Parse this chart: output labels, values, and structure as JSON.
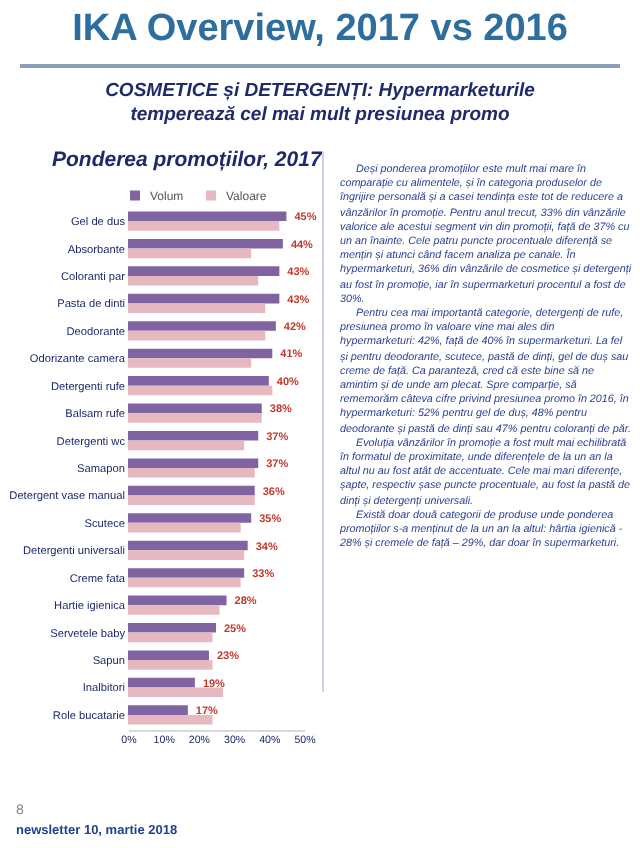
{
  "chart_data": {
    "type": "bar",
    "orientation": "horizontal",
    "title": "IKA Overview, 2017 vs 2016",
    "subtitle": "COSMETICE și DETERGENȚI: Hypermarketurile temperează cel mai mult presiunea promo",
    "categories": [
      "Gel de dus",
      "Absorbante",
      "Coloranti par",
      "Pasta de dinti",
      "Deodorante",
      "Odorizante camera",
      "Detergenti rufe",
      "Balsam rufe",
      "Detergenti wc",
      "Samapon",
      "Detergent vase manual",
      "Scutece",
      "Detergenti universali",
      "Creme fata",
      "Hartie igienica",
      "Servetele baby",
      "Sapun",
      "Inalbitori",
      "Role bucatarie"
    ],
    "series": [
      {
        "name": "Volum",
        "color": "#8064a2",
        "values": [
          45,
          44,
          43,
          43,
          42,
          41,
          40,
          38,
          37,
          37,
          36,
          35,
          34,
          33,
          28,
          25,
          23,
          19,
          17
        ],
        "value_labels": [
          "45%",
          "44%",
          "43%",
          "43%",
          "42%",
          "41%",
          "40%",
          "38%",
          "37%",
          "37%",
          "36%",
          "35%",
          "34%",
          "33%",
          "28%",
          "25%",
          "23%",
          "19%",
          "17%"
        ]
      },
      {
        "name": "Valoare",
        "color": "#e6b9c0",
        "values": [
          43,
          35,
          37,
          39,
          39,
          35,
          41,
          38,
          33,
          36,
          36,
          32,
          33,
          32,
          26,
          24,
          24,
          27,
          24
        ]
      }
    ],
    "xlim": [
      0,
      50
    ],
    "xticks": [
      {
        "value": 0,
        "label": "0%"
      },
      {
        "value": 10,
        "label": "10%"
      },
      {
        "value": 20,
        "label": "20%"
      },
      {
        "value": 30,
        "label": "30%"
      },
      {
        "value": 40,
        "label": "40%"
      },
      {
        "value": 50,
        "label": "50%"
      }
    ],
    "legend": "top left",
    "grid": false,
    "annotations": [
      "Ponderea promoțiilor, 2017",
      "Deși ponderea promoțiilor este mult mai mare în comparație cu alimentele, și în categoria produselor de îngrijire personală și a casei tendința este tot de reducere a vânzărilor în promoție. Pentru anul trecut, 33% din vânzările valorice ale acestui segment vin din promoții, față de 37% cu un an înainte. Cele patru puncte procentuale diferență se mențin și atunci când facem analiza pe canale. În hypermarketuri, 36% din vânzările de cosmetice și detergenți au fost în promoție, iar în supermarketuri procentul a fost de 30%.",
      "Pentru cea mai importantă categorie, detergenți de rufe, presiunea promo în valoare vine mai ales din hypermarketuri: 42%, față de 40% în supermarketuri. La fel și pentru deodorante, scutece, pastă de dinți, gel de duș sau creme de față. Ca paranteză, cred că este bine să ne amintim și de unde am plecat. Spre comparție, să rememorăm câteva cifre privind presiunea promo în 2016, în hypermarketuri: 52% pentru gel de duș, 48% pentru deodorante și pastă de dinți sau 47% pentru coloranți de păr.",
      "Evoluția vânzărilor în promoție a fost mult mai echilibrată în formatul de proximitate, unde diferențele de la un an la altul nu au fost atât de accentuate. Cele mai mari diferențe, șapte, respectiv șase puncte procentuale, au fost la pastă de dinți și detergenți universali.",
      "Există doar două categorii de produse unde ponderea promoțiilor s-a menținut de la un an la altul: hârtia igienică - 28% și cremele de față – 29%, dar doar în supermarketuri.",
      "8",
      "newsletter 10, martie 2018"
    ]
  }
}
